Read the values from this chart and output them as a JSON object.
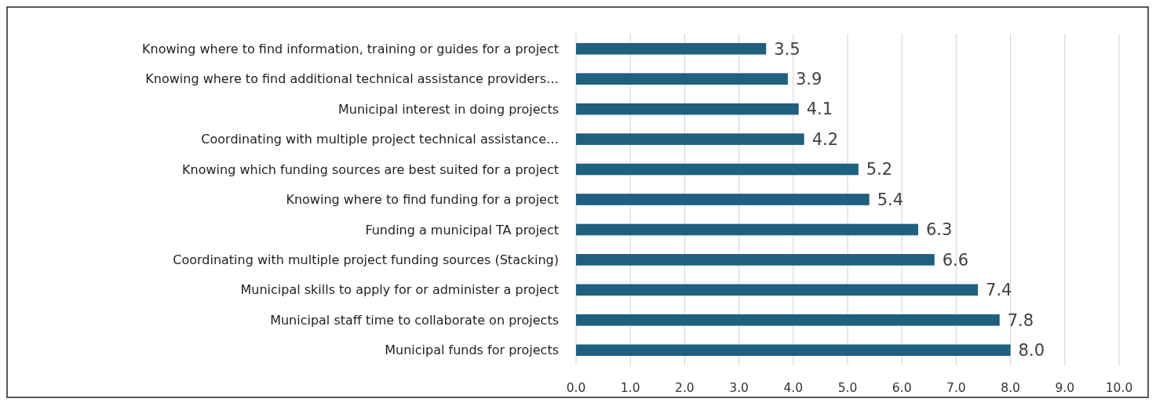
{
  "chart_data": {
    "type": "bar",
    "orientation": "horizontal",
    "categories": [
      "Knowing where to find information, training or guides for a project",
      "Knowing where to find additional technical assistance providers…",
      "Municipal interest in doing projects",
      "Coordinating with multiple project technical assistance…",
      "Knowing which funding sources are best suited for a project",
      "Knowing where to find funding for a project",
      "Funding a municipal TA project",
      "Coordinating with multiple project funding sources (Stacking)",
      "Municipal skills to apply for or administer a project",
      "Municipal staff time to collaborate on projects",
      "Municipal funds for projects"
    ],
    "values": [
      3.5,
      3.9,
      4.1,
      4.2,
      5.2,
      5.4,
      6.3,
      6.6,
      7.4,
      7.8,
      8.0
    ],
    "value_labels": [
      "3.5",
      "3.9",
      "4.1",
      "4.2",
      "5.2",
      "5.4",
      "6.3",
      "6.6",
      "7.4",
      "7.8",
      "8.0"
    ],
    "color": "#1f5f7f",
    "xlim": [
      0,
      10
    ],
    "xticks": [
      {
        "value": 0,
        "label": "0.0"
      },
      {
        "value": 1,
        "label": "1.0"
      },
      {
        "value": 2,
        "label": "2.0"
      },
      {
        "value": 3,
        "label": "3.0"
      },
      {
        "value": 4,
        "label": "4.0"
      },
      {
        "value": 5,
        "label": "5.0"
      },
      {
        "value": 6,
        "label": "6.0"
      },
      {
        "value": 7,
        "label": "7.0"
      },
      {
        "value": 8,
        "label": "8.0"
      },
      {
        "value": 9,
        "label": "9.0"
      },
      {
        "value": 10,
        "label": "10.0"
      }
    ],
    "grid": "x"
  }
}
